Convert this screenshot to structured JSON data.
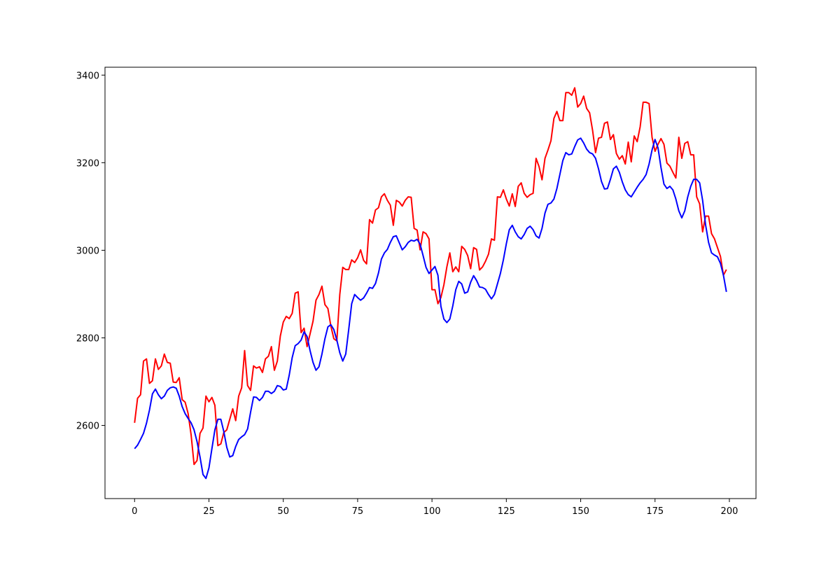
{
  "chart_data": {
    "type": "line",
    "x": [
      0,
      1,
      2,
      3,
      4,
      5,
      6,
      7,
      8,
      9,
      10,
      11,
      12,
      13,
      14,
      15,
      16,
      17,
      18,
      19,
      20,
      21,
      22,
      23,
      24,
      25,
      26,
      27,
      28,
      29,
      30,
      31,
      32,
      33,
      34,
      35,
      36,
      37,
      38,
      39,
      40,
      41,
      42,
      43,
      44,
      45,
      46,
      47,
      48,
      49,
      50,
      51,
      52,
      53,
      54,
      55,
      56,
      57,
      58,
      59,
      60,
      61,
      62,
      63,
      64,
      65,
      66,
      67,
      68,
      69,
      70,
      71,
      72,
      73,
      74,
      75,
      76,
      77,
      78,
      79,
      80,
      81,
      82,
      83,
      84,
      85,
      86,
      87,
      88,
      89,
      90,
      91,
      92,
      93,
      94,
      95,
      96,
      97,
      98,
      99,
      100,
      101,
      102,
      103,
      104,
      105,
      106,
      107,
      108,
      109,
      110,
      111,
      112,
      113,
      114,
      115,
      116,
      117,
      118,
      119,
      120,
      121,
      122,
      123,
      124,
      125,
      126,
      127,
      128,
      129,
      130,
      131,
      132,
      133,
      134,
      135,
      136,
      137,
      138,
      139,
      140,
      141,
      142,
      143,
      144,
      145,
      146,
      147,
      148,
      149,
      150,
      151,
      152,
      153,
      154,
      155,
      156,
      157,
      158,
      159,
      160,
      161,
      162,
      163,
      164,
      165,
      166,
      167,
      168,
      169,
      170,
      171,
      172,
      173,
      174,
      175,
      176,
      177,
      178,
      179,
      180,
      181,
      182,
      183,
      184,
      185,
      186,
      187,
      188,
      189,
      190,
      191,
      192,
      193,
      194,
      195,
      196,
      197,
      198,
      199
    ],
    "series": [
      {
        "color": "#ff0000",
        "values": [
          2606,
          2662,
          2670,
          2747,
          2752,
          2696,
          2702,
          2752,
          2728,
          2736,
          2763,
          2744,
          2742,
          2699,
          2698,
          2709,
          2659,
          2653,
          2627,
          2579,
          2511,
          2520,
          2582,
          2594,
          2667,
          2654,
          2664,
          2646,
          2554,
          2558,
          2584,
          2590,
          2614,
          2638,
          2611,
          2667,
          2686,
          2771,
          2691,
          2680,
          2736,
          2731,
          2734,
          2721,
          2752,
          2758,
          2780,
          2726,
          2747,
          2804,
          2836,
          2849,
          2844,
          2856,
          2902,
          2905,
          2812,
          2822,
          2780,
          2809,
          2838,
          2886,
          2899,
          2918,
          2876,
          2867,
          2827,
          2798,
          2793,
          2899,
          2961,
          2956,
          2956,
          2978,
          2972,
          2983,
          3001,
          2977,
          2969,
          3070,
          3062,
          3092,
          3097,
          3122,
          3129,
          3114,
          3103,
          3057,
          3114,
          3110,
          3101,
          3114,
          3122,
          3121,
          3050,
          3046,
          3001,
          3042,
          3038,
          3026,
          2910,
          2910,
          2878,
          2892,
          2921,
          2962,
          2994,
          2951,
          2962,
          2951,
          3009,
          3002,
          2988,
          2958,
          3006,
          3002,
          2955,
          2962,
          2975,
          2991,
          3026,
          3023,
          3122,
          3121,
          3138,
          3117,
          3101,
          3129,
          3100,
          3146,
          3154,
          3130,
          3121,
          3127,
          3130,
          3210,
          3191,
          3161,
          3210,
          3229,
          3250,
          3301,
          3317,
          3296,
          3296,
          3360,
          3360,
          3354,
          3371,
          3327,
          3335,
          3352,
          3324,
          3314,
          3274,
          3223,
          3256,
          3258,
          3290,
          3293,
          3253,
          3264,
          3221,
          3208,
          3216,
          3197,
          3247,
          3202,
          3261,
          3248,
          3282,
          3338,
          3338,
          3335,
          3258,
          3226,
          3242,
          3255,
          3242,
          3199,
          3192,
          3178,
          3165,
          3258,
          3210,
          3244,
          3248,
          3218,
          3218,
          3122,
          3106,
          3042,
          3078,
          3078,
          3038,
          3026,
          3006,
          2986,
          2943,
          2956
        ]
      },
      {
        "color": "#0000ff",
        "values": [
          2547,
          2555,
          2568,
          2582,
          2605,
          2635,
          2672,
          2683,
          2670,
          2661,
          2667,
          2680,
          2686,
          2688,
          2685,
          2667,
          2643,
          2627,
          2616,
          2606,
          2590,
          2563,
          2528,
          2488,
          2479,
          2503,
          2547,
          2590,
          2614,
          2614,
          2586,
          2550,
          2528,
          2531,
          2552,
          2568,
          2574,
          2579,
          2592,
          2630,
          2665,
          2664,
          2657,
          2664,
          2678,
          2678,
          2673,
          2678,
          2691,
          2689,
          2681,
          2683,
          2715,
          2755,
          2782,
          2787,
          2795,
          2814,
          2803,
          2771,
          2744,
          2726,
          2734,
          2763,
          2798,
          2825,
          2830,
          2819,
          2795,
          2766,
          2747,
          2763,
          2819,
          2878,
          2899,
          2892,
          2886,
          2891,
          2902,
          2915,
          2913,
          2924,
          2948,
          2980,
          2994,
          3002,
          3018,
          3031,
          3033,
          3017,
          3001,
          3008,
          3018,
          3023,
          3021,
          3025,
          3014,
          2988,
          2961,
          2947,
          2955,
          2963,
          2943,
          2872,
          2843,
          2835,
          2843,
          2873,
          2910,
          2929,
          2923,
          2902,
          2905,
          2927,
          2942,
          2931,
          2916,
          2915,
          2911,
          2899,
          2889,
          2899,
          2923,
          2947,
          2978,
          3015,
          3047,
          3057,
          3042,
          3031,
          3026,
          3036,
          3050,
          3055,
          3047,
          3033,
          3028,
          3050,
          3085,
          3105,
          3108,
          3117,
          3141,
          3173,
          3205,
          3223,
          3218,
          3220,
          3237,
          3252,
          3256,
          3245,
          3231,
          3223,
          3220,
          3210,
          3186,
          3157,
          3140,
          3141,
          3162,
          3186,
          3192,
          3178,
          3156,
          3138,
          3127,
          3122,
          3133,
          3144,
          3154,
          3162,
          3173,
          3197,
          3229,
          3253,
          3234,
          3189,
          3151,
          3141,
          3146,
          3138,
          3117,
          3090,
          3074,
          3090,
          3122,
          3146,
          3162,
          3162,
          3154,
          3114,
          3058,
          3018,
          2994,
          2989,
          2985,
          2970,
          2943,
          2905
        ]
      }
    ],
    "xlim": [
      -9.95,
      208.95
    ],
    "xticks": [
      0,
      25,
      50,
      75,
      100,
      125,
      150,
      175,
      200
    ],
    "ylim": [
      2433,
      3418
    ],
    "yticks": [
      2600,
      2800,
      3000,
      3200,
      3400
    ]
  }
}
